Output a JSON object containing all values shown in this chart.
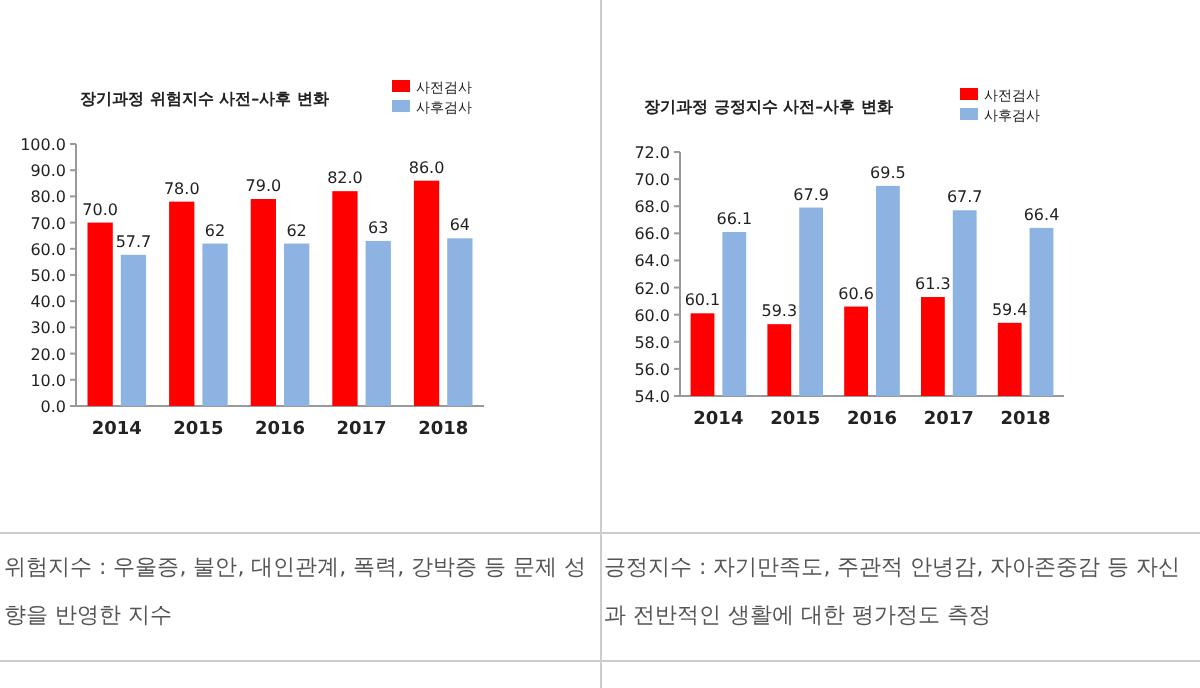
{
  "chart_data": [
    {
      "type": "bar",
      "title": "장기과정 위험지수 사전–사후 변화",
      "categories": [
        "2014",
        "2015",
        "2016",
        "2017",
        "2018"
      ],
      "series": [
        {
          "name": "사전검사",
          "color": "#ff0000",
          "values": [
            70.0,
            78.0,
            79.0,
            82.0,
            86.0
          ],
          "value_labels": [
            "70.0",
            "78.0",
            "79.0",
            "82.0",
            "86.0"
          ]
        },
        {
          "name": "사후검사",
          "color": "#8db3e2",
          "values": [
            57.7,
            62,
            62,
            63,
            64
          ],
          "value_labels": [
            "57.7",
            "62",
            "62",
            "63",
            "64"
          ]
        }
      ],
      "ylim": [
        0,
        100
      ],
      "yticks": [
        {
          "value": 0,
          "label": "0.0"
        },
        {
          "value": 10,
          "label": "10.0"
        },
        {
          "value": 20,
          "label": "20.0"
        },
        {
          "value": 30,
          "label": "30.0"
        },
        {
          "value": 40,
          "label": "40.0"
        },
        {
          "value": 50,
          "label": "50.0"
        },
        {
          "value": 60,
          "label": "60.0"
        },
        {
          "value": 70,
          "label": "70.0"
        },
        {
          "value": 80,
          "label": "80.0"
        },
        {
          "value": 90,
          "label": "90.0"
        },
        {
          "value": 100,
          "label": "100.0"
        }
      ],
      "legend": "top right",
      "grid": false,
      "annotations": [
        "위험지수 : 우울증, 불안, 대인관계, 폭력, 강박증 등 문제 성향을 반영한 지수"
      ]
    },
    {
      "type": "bar",
      "title": "장기과정 긍정지수 사전–사후 변화",
      "categories": [
        "2014",
        "2015",
        "2016",
        "2017",
        "2018"
      ],
      "series": [
        {
          "name": "사전검사",
          "color": "#ff0000",
          "values": [
            60.1,
            59.3,
            60.6,
            61.3,
            59.4
          ],
          "value_labels": [
            "60.1",
            "59.3",
            "60.6",
            "61.3",
            "59.4"
          ]
        },
        {
          "name": "사후검사",
          "color": "#8db3e2",
          "values": [
            66.1,
            67.9,
            69.5,
            67.7,
            66.4
          ],
          "value_labels": [
            "66.1",
            "67.9",
            "69.5",
            "67.7",
            "66.4"
          ]
        }
      ],
      "ylim": [
        54,
        72
      ],
      "yticks": [
        {
          "value": 54,
          "label": "54.0"
        },
        {
          "value": 56,
          "label": "56.0"
        },
        {
          "value": 58,
          "label": "58.0"
        },
        {
          "value": 60,
          "label": "60.0"
        },
        {
          "value": 62,
          "label": "62.0"
        },
        {
          "value": 64,
          "label": "64.0"
        },
        {
          "value": 66,
          "label": "66.0"
        },
        {
          "value": 68,
          "label": "68.0"
        },
        {
          "value": 70,
          "label": "70.0"
        },
        {
          "value": 72,
          "label": "72.0"
        }
      ],
      "legend": "top right",
      "grid": false,
      "annotations": [
        "긍정지수 : 자기만족도, 주관적 안녕감, 자아존중감 등 자신과 전반적인 생활에 대한 평가정도 측정"
      ]
    }
  ]
}
